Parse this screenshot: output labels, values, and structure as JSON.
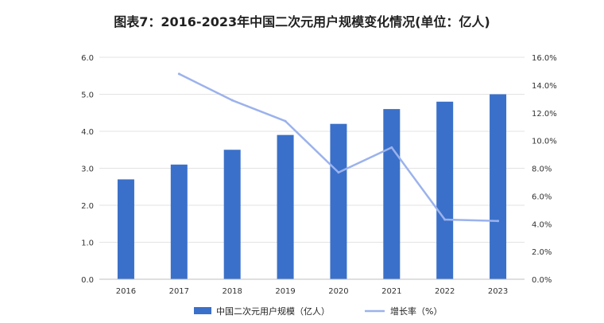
{
  "chart_data": {
    "type": "bar",
    "title": "图表7：2016-2023年中国二次元用户规模变化情况(单位：亿人)",
    "categories": [
      "2016",
      "2017",
      "2018",
      "2019",
      "2020",
      "2021",
      "2022",
      "2023"
    ],
    "series": [
      {
        "name": "中国二次元用户规模（亿人）",
        "type": "bar",
        "axis": "left",
        "color": "#3a70c9",
        "values": [
          2.7,
          3.1,
          3.5,
          3.9,
          4.2,
          4.6,
          4.8,
          5.0
        ]
      },
      {
        "name": "增长率（%）",
        "type": "line",
        "axis": "right",
        "color": "#9bb2ec",
        "values": [
          null,
          14.8,
          12.9,
          11.4,
          7.7,
          9.5,
          4.3,
          4.2
        ]
      }
    ],
    "y_left": {
      "ylim": [
        0,
        6
      ],
      "ticks": [
        "0.0",
        "1.0",
        "2.0",
        "3.0",
        "4.0",
        "5.0",
        "6.0"
      ]
    },
    "y_right": {
      "ylim": [
        0,
        16
      ],
      "ticks": [
        "0.0%",
        "2.0%",
        "4.0%",
        "6.0%",
        "8.0%",
        "10.0%",
        "12.0%",
        "14.0%",
        "16.0%"
      ]
    },
    "grid": true,
    "legend": "bottom"
  }
}
